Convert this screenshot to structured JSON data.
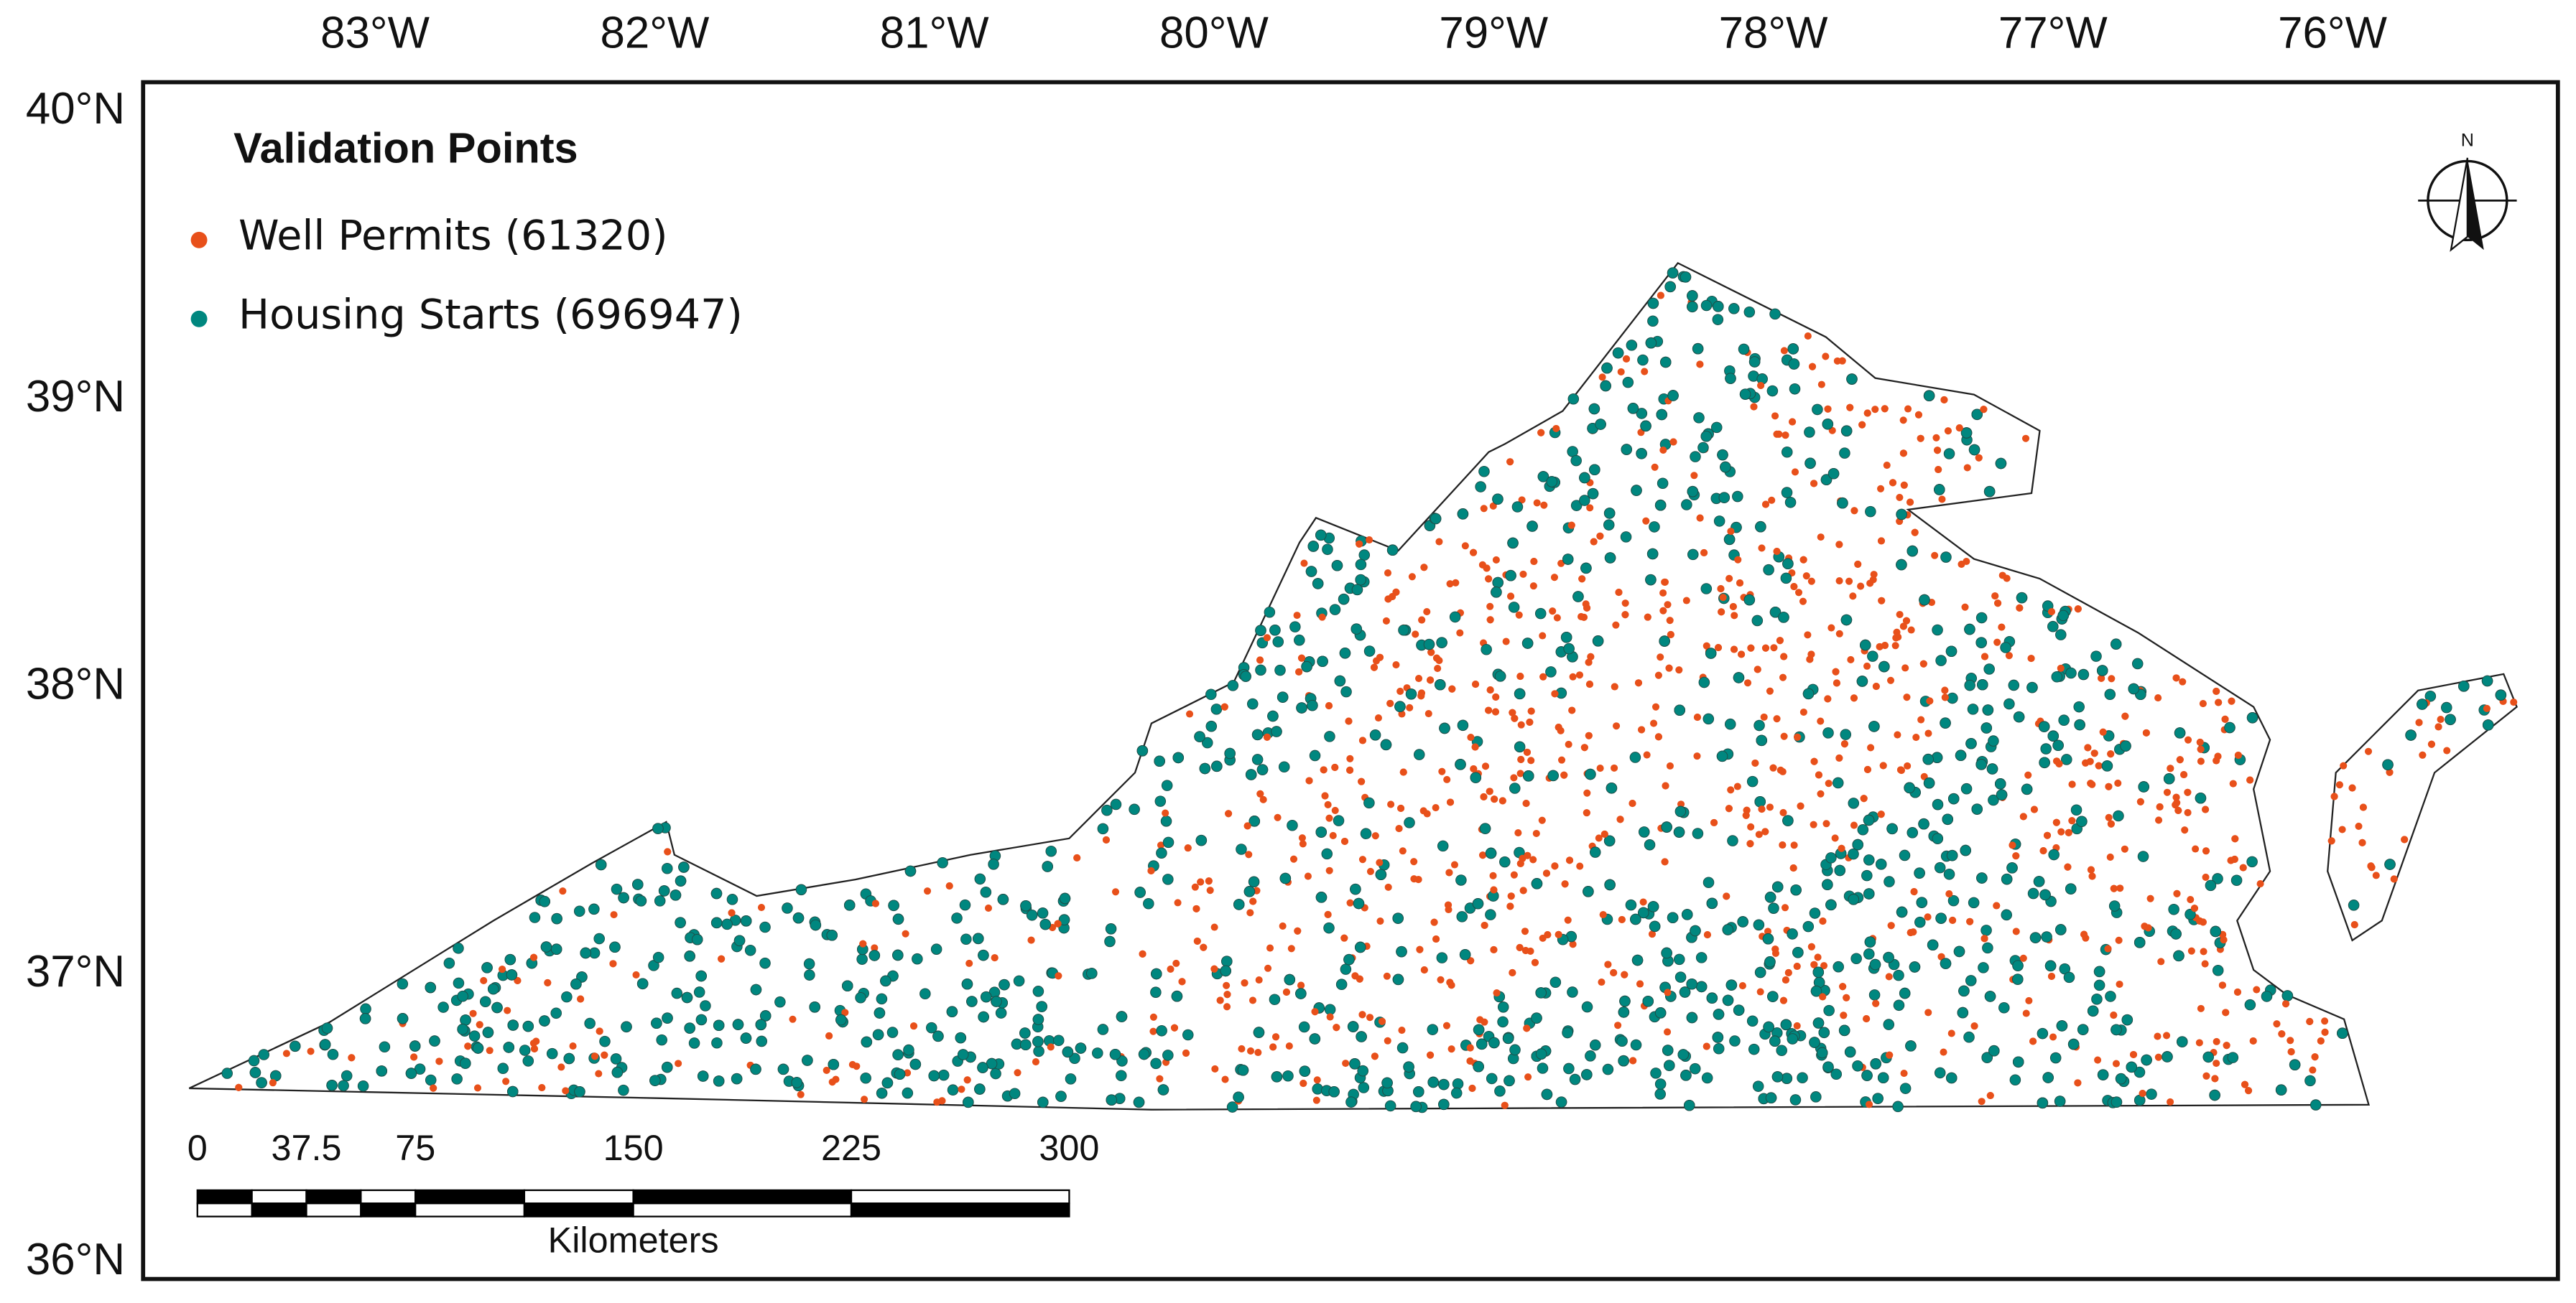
{
  "map": {
    "title": "Validation Points",
    "legend": [
      {
        "label": "Well Permits (61320)",
        "color": "#e8501a"
      },
      {
        "label": "Housing Starts (696947)",
        "color": "#00877f"
      }
    ],
    "lon_labels": [
      "83°W",
      "82°W",
      "81°W",
      "80°W",
      "79°W",
      "78°W",
      "77°W",
      "76°W"
    ],
    "lat_labels": [
      "40°N",
      "39°N",
      "38°N",
      "37°N",
      "36°N"
    ],
    "scale_bar": {
      "ticks": [
        0,
        37.5,
        75,
        150,
        225,
        300
      ],
      "unit": "Kilometers"
    },
    "north_label": "N"
  }
}
